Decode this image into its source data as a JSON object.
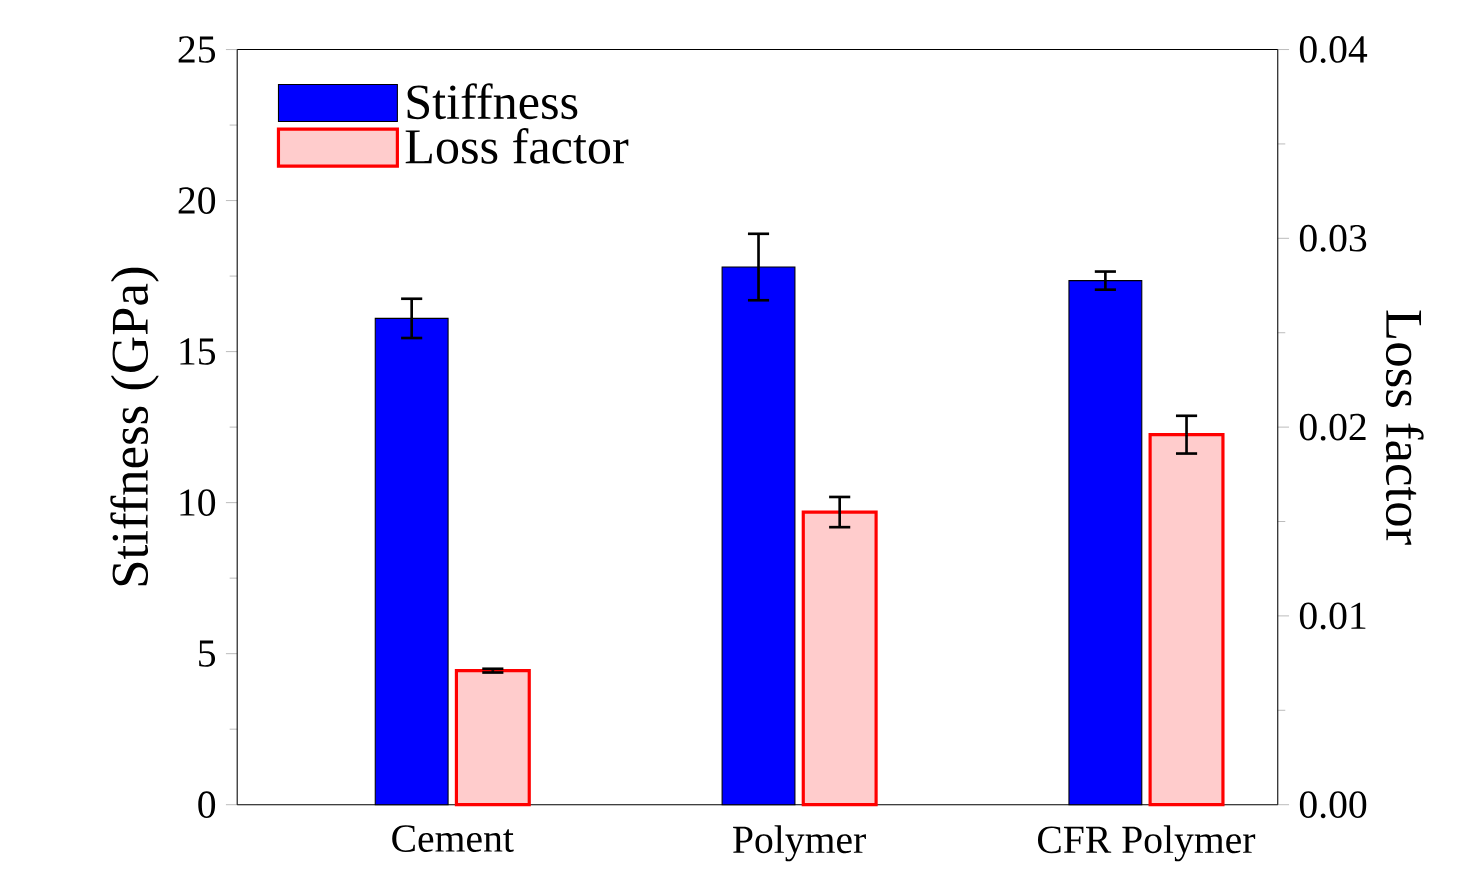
{
  "chart_data": {
    "type": "bar",
    "categories": [
      "Cement",
      "Polymer",
      "CFR Polymer"
    ],
    "ylabel": "Stiffness (GPa)",
    "y2label": "Loss factor",
    "ylim": [
      0,
      25
    ],
    "yticks": [
      0,
      5,
      10,
      15,
      20,
      25
    ],
    "y2lim": [
      0,
      0.04
    ],
    "y2ticks": [
      {
        "value": 0,
        "label": "0.00"
      },
      {
        "value": 0.01,
        "label": "0.01"
      },
      {
        "value": 0.02,
        "label": "0.02"
      },
      {
        "value": 0.03,
        "label": "0.03"
      },
      {
        "value": 0.04,
        "label": "0.04"
      }
    ],
    "legend": "top left",
    "grid": false,
    "series": [
      {
        "name": "Stiffness",
        "color": "#0000ff",
        "values": [
          16.1,
          17.8,
          17.35
        ],
        "errors": [
          0.65,
          1.1,
          0.3
        ]
      },
      {
        "name": "Loss factor",
        "color": "#ff0000",
        "axis": "y2",
        "values": [
          0.0071,
          0.0155,
          0.0196
        ],
        "errors": [
          0.0001,
          0.0008,
          0.001
        ]
      }
    ]
  }
}
